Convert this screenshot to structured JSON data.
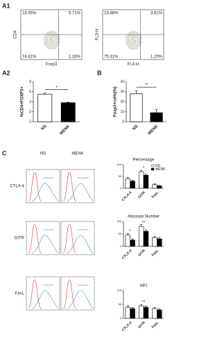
{
  "panel_labels": {
    "a1": "A1",
    "a2": "A2",
    "b": "B",
    "c": "C"
  },
  "flow_plots": [
    {
      "ylabel": "CD4",
      "xlabel": "Foxp3",
      "quadrants": [
        "18.55%",
        "5.71%",
        "74.41%",
        "1.33%"
      ]
    },
    {
      "ylabel": "FL3-H",
      "xlabel": "FL4-H",
      "quadrants": [
        "19.88%",
        "3.61%",
        "75.31%",
        "1.20%"
      ]
    }
  ],
  "histograms": {
    "columns": [
      "NS",
      "MENK"
    ],
    "rows": [
      "CTLA-4",
      "GITR",
      "FasL"
    ]
  },
  "chart_data": [
    {
      "type": "bar",
      "ylabel": "%CD4+FOXP3+",
      "categories": [
        "NS",
        "MENK"
      ],
      "values": [
        5.5,
        3.8
      ],
      "errors": [
        0.2,
        0.15
      ],
      "colors": [
        "#ffffff",
        "#000000"
      ],
      "ylim": [
        0,
        8
      ],
      "yticks": [
        0,
        2,
        4,
        6,
        8
      ],
      "annotation": "*"
    },
    {
      "type": "bar",
      "ylabel": "Foxp3+cells(%)",
      "categories": [
        "NS",
        "MENK"
      ],
      "values": [
        28,
        9
      ],
      "errors": [
        3,
        3
      ],
      "colors": [
        "#ffffff",
        "#000000"
      ],
      "ylim": [
        0,
        40
      ],
      "yticks": [
        0,
        10,
        20,
        30,
        40
      ],
      "annotation": "**"
    },
    {
      "type": "grouped-bar",
      "title": "Percentage",
      "categories": [
        "CTLA-4",
        "GITR",
        "FasL"
      ],
      "series": [
        {
          "name": "NS",
          "color": "#ffffff",
          "values": [
            40,
            70,
            15
          ],
          "errors": [
            5,
            6,
            3
          ]
        },
        {
          "name": "MENK",
          "color": "#000000",
          "values": [
            30,
            55,
            10
          ],
          "errors": [
            4,
            5,
            2
          ]
        }
      ],
      "ylim": [
        0,
        100
      ],
      "yticks": [
        0,
        50,
        100
      ],
      "annotations": [
        null,
        "*",
        null
      ],
      "legend": "upper right"
    },
    {
      "type": "grouped-bar",
      "title": "Absolute Number",
      "categories": [
        "CTLA-4",
        "GITR",
        "FasL"
      ],
      "series": [
        {
          "name": "NS",
          "color": "#ffffff",
          "values": [
            45,
            80,
            35
          ],
          "errors": [
            6,
            7,
            5
          ]
        },
        {
          "name": "MENK",
          "color": "#000000",
          "values": [
            25,
            60,
            30
          ],
          "errors": [
            4,
            6,
            4
          ]
        }
      ],
      "ylim": [
        0,
        100
      ],
      "yticks": [
        0,
        50,
        100
      ],
      "annotations": [
        "*",
        "**",
        null
      ]
    },
    {
      "type": "grouped-bar",
      "title": "MFI",
      "categories": [
        "CTLA-4",
        "GITR",
        "FasL"
      ],
      "series": [
        {
          "name": "NS",
          "color": "#ffffff",
          "values": [
            40,
            45,
            35
          ],
          "errors": [
            5,
            5,
            4
          ]
        },
        {
          "name": "MENK",
          "color": "#000000",
          "values": [
            35,
            40,
            30
          ],
          "errors": [
            4,
            5,
            4
          ]
        }
      ],
      "ylim": [
        0,
        100
      ],
      "yticks": [
        0,
        50,
        100
      ],
      "annotations": [
        null,
        "**",
        null
      ]
    }
  ]
}
